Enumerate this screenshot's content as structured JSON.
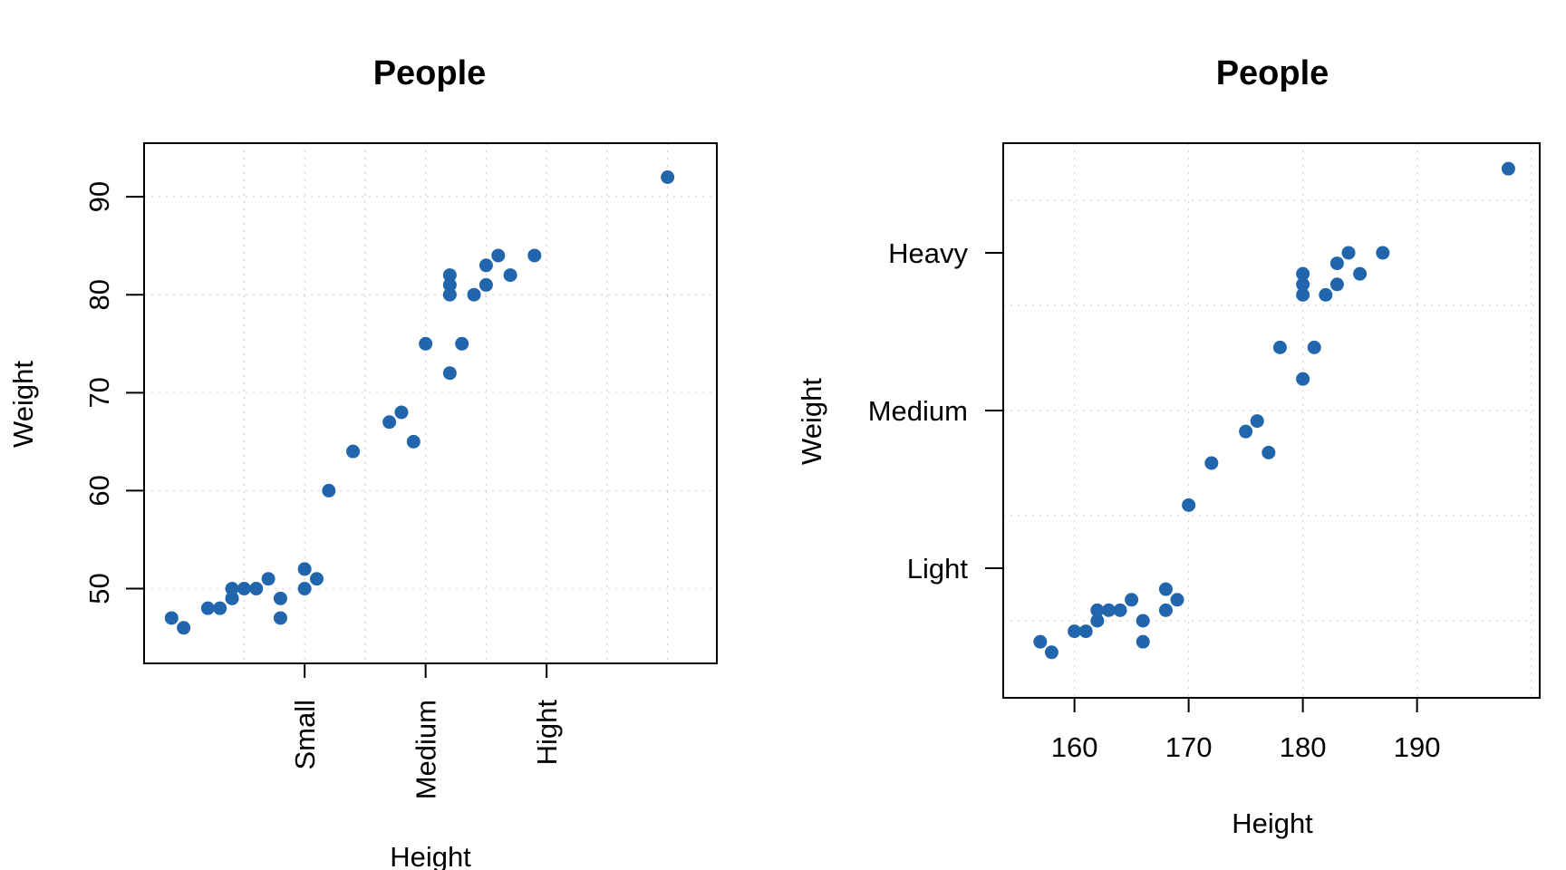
{
  "chart_data": [
    {
      "type": "scatter",
      "title": "People",
      "xlabel": "Height",
      "ylabel": "Weight",
      "x_tick_labels": [
        "Small",
        "Medium",
        "Hight"
      ],
      "y_tick_labels": [
        "50",
        "60",
        "70",
        "80",
        "90"
      ],
      "grid": true,
      "point_color": "#2166ac",
      "points": [
        {
          "x": 157,
          "y": 47
        },
        {
          "x": 158,
          "y": 46
        },
        {
          "x": 160,
          "y": 48
        },
        {
          "x": 161,
          "y": 48
        },
        {
          "x": 162,
          "y": 49
        },
        {
          "x": 162,
          "y": 50
        },
        {
          "x": 163,
          "y": 50
        },
        {
          "x": 164,
          "y": 50
        },
        {
          "x": 165,
          "y": 51
        },
        {
          "x": 166,
          "y": 49
        },
        {
          "x": 166,
          "y": 47
        },
        {
          "x": 168,
          "y": 52
        },
        {
          "x": 168,
          "y": 50
        },
        {
          "x": 169,
          "y": 51
        },
        {
          "x": 170,
          "y": 60
        },
        {
          "x": 172,
          "y": 64
        },
        {
          "x": 175,
          "y": 67
        },
        {
          "x": 176,
          "y": 68
        },
        {
          "x": 177,
          "y": 65
        },
        {
          "x": 178,
          "y": 75
        },
        {
          "x": 180,
          "y": 72
        },
        {
          "x": 180,
          "y": 80
        },
        {
          "x": 180,
          "y": 81
        },
        {
          "x": 180,
          "y": 82
        },
        {
          "x": 181,
          "y": 75
        },
        {
          "x": 182,
          "y": 80
        },
        {
          "x": 183,
          "y": 81
        },
        {
          "x": 183,
          "y": 83
        },
        {
          "x": 184,
          "y": 84
        },
        {
          "x": 185,
          "y": 82
        },
        {
          "x": 187,
          "y": 84
        },
        {
          "x": 198,
          "y": 92
        }
      ]
    },
    {
      "type": "scatter",
      "title": "People",
      "xlabel": "Height",
      "ylabel": "Weight",
      "x_tick_labels": [
        "160",
        "170",
        "180",
        "190"
      ],
      "y_tick_labels": [
        "Light",
        "Medium",
        "Heavy"
      ],
      "grid": true,
      "point_color": "#2166ac",
      "points": [
        {
          "x": 157,
          "y": 47
        },
        {
          "x": 158,
          "y": 46
        },
        {
          "x": 160,
          "y": 48
        },
        {
          "x": 161,
          "y": 48
        },
        {
          "x": 162,
          "y": 49
        },
        {
          "x": 162,
          "y": 50
        },
        {
          "x": 163,
          "y": 50
        },
        {
          "x": 164,
          "y": 50
        },
        {
          "x": 165,
          "y": 51
        },
        {
          "x": 166,
          "y": 49
        },
        {
          "x": 166,
          "y": 47
        },
        {
          "x": 168,
          "y": 52
        },
        {
          "x": 168,
          "y": 50
        },
        {
          "x": 169,
          "y": 51
        },
        {
          "x": 170,
          "y": 60
        },
        {
          "x": 172,
          "y": 64
        },
        {
          "x": 175,
          "y": 67
        },
        {
          "x": 176,
          "y": 68
        },
        {
          "x": 177,
          "y": 65
        },
        {
          "x": 178,
          "y": 75
        },
        {
          "x": 180,
          "y": 72
        },
        {
          "x": 180,
          "y": 80
        },
        {
          "x": 180,
          "y": 81
        },
        {
          "x": 180,
          "y": 82
        },
        {
          "x": 181,
          "y": 75
        },
        {
          "x": 182,
          "y": 80
        },
        {
          "x": 183,
          "y": 81
        },
        {
          "x": 183,
          "y": 83
        },
        {
          "x": 184,
          "y": 84
        },
        {
          "x": 185,
          "y": 82
        },
        {
          "x": 187,
          "y": 84
        },
        {
          "x": 198,
          "y": 92
        }
      ]
    }
  ]
}
